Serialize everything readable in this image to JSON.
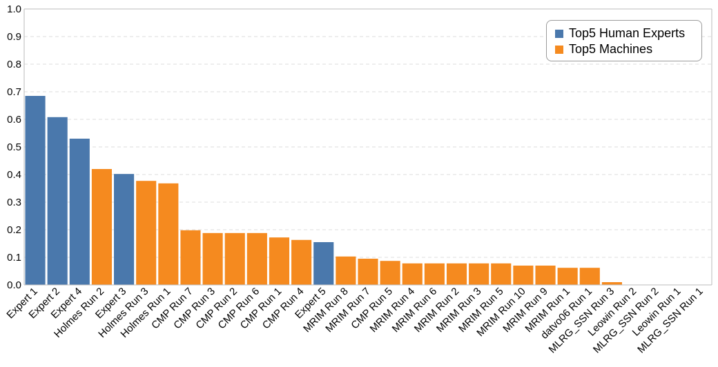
{
  "chart_data": {
    "type": "bar",
    "ylim": [
      0,
      1.0
    ],
    "yticks": [
      "0.0",
      "0.1",
      "0.2",
      "0.3",
      "0.4",
      "0.5",
      "0.6",
      "0.7",
      "0.8",
      "0.9",
      "1.0"
    ],
    "grid": "horizontal dashed",
    "legend_position": "top-right",
    "series": [
      {
        "name": "Top5 Human Experts",
        "color": "#4a78ac"
      },
      {
        "name": "Top5 Machines",
        "color": "#f58a1f"
      }
    ],
    "categories": [
      "Expert 1",
      "Expert 2",
      "Expert 4",
      "Holmes Run 2",
      "Expert 3",
      "Holmes Run 3",
      "Holmes Run 1",
      "CMP Run 7",
      "CMP Run 3",
      "CMP Run 2",
      "CMP Run 6",
      "CMP Run 1",
      "CMP Run 4",
      "Expert 5",
      "MRIM Run 8",
      "MRIM Run 7",
      "CMP Run 5",
      "MRIM Run 4",
      "MRIM Run 6",
      "MRIM Run 2",
      "MRIM Run 3",
      "MRIM Run 5",
      "MRIM Run 10",
      "MRIM Run 9",
      "MRIM Run 1",
      "datvo06 Run 1",
      "MLRG_SSN Run 3",
      "Leowin Run 2",
      "MLRG_SSN Run 2",
      "Leowin Run 1",
      "MLRG_SSN Run 1"
    ],
    "values": [
      0.685,
      0.608,
      0.53,
      0.42,
      0.402,
      0.377,
      0.368,
      0.198,
      0.188,
      0.188,
      0.188,
      0.172,
      0.163,
      0.155,
      0.103,
      0.095,
      0.087,
      0.078,
      0.078,
      0.078,
      0.078,
      0.078,
      0.07,
      0.07,
      0.062,
      0.062,
      0.01,
      0,
      0,
      0,
      0
    ],
    "groups": [
      0,
      0,
      0,
      1,
      0,
      1,
      1,
      1,
      1,
      1,
      1,
      1,
      1,
      0,
      1,
      1,
      1,
      1,
      1,
      1,
      1,
      1,
      1,
      1,
      1,
      1,
      1,
      1,
      1,
      1,
      1
    ]
  }
}
